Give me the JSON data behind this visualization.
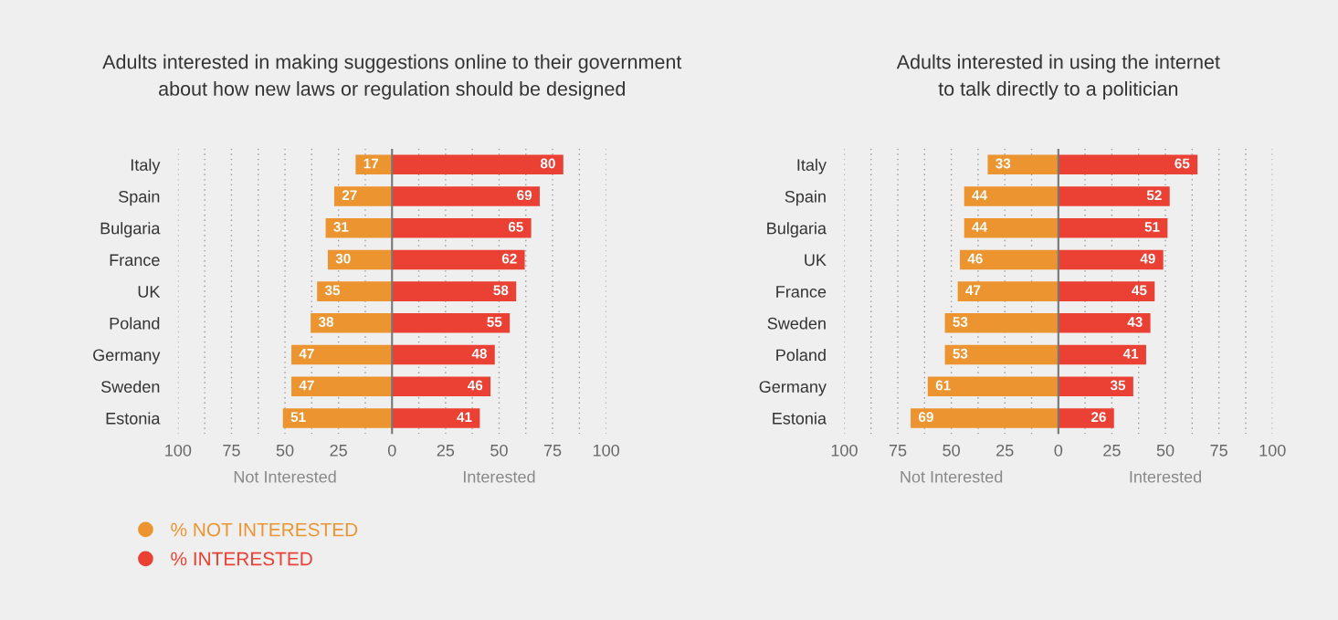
{
  "chart_data": [
    {
      "type": "bar",
      "orientation": "horizontal",
      "stacked": true,
      "title": "Adults interested in making suggestions online to their government\nabout how new laws or regulation should be designed",
      "categories": [
        "Italy",
        "Spain",
        "Bulgaria",
        "France",
        "UK",
        "Poland",
        "Germany",
        "Sweden",
        "Estonia"
      ],
      "series": [
        {
          "name": "% NOT INTERESTED",
          "color": "#ec9430",
          "values": [
            17,
            27,
            31,
            30,
            35,
            38,
            47,
            47,
            51
          ],
          "base": [
            -17,
            -27,
            -31,
            -30,
            -35,
            -38,
            -47,
            -47,
            -51
          ]
        },
        {
          "name": "% INTERESTED",
          "color": "#eb4034",
          "values": [
            80,
            69,
            65,
            62,
            58,
            55,
            48,
            46,
            41
          ]
        }
      ],
      "data_labels": true,
      "xlim": [
        -100,
        100
      ],
      "xticks": [
        {
          "value": -100,
          "label": "100"
        },
        {
          "value": -87.5,
          "label": null
        },
        {
          "value": -75,
          "label": "75"
        },
        {
          "value": -62.5,
          "label": null
        },
        {
          "value": -50,
          "label": "50"
        },
        {
          "value": -37.5,
          "label": null
        },
        {
          "value": -25,
          "label": "25"
        },
        {
          "value": -12.5,
          "label": null
        },
        0,
        {
          "value": 12.5,
          "label": null
        },
        25,
        {
          "value": 37.5,
          "label": null
        },
        50,
        {
          "value": 62.5,
          "label": null
        },
        75,
        {
          "value": 87.5,
          "label": null
        },
        100
      ],
      "grid": "x",
      "ref_lines": [
        {
          "axis": "x",
          "value": 0,
          "color": "#777777"
        }
      ],
      "annotations": [
        "Not Interested",
        "Interested"
      ],
      "legend": "bottom left"
    },
    {
      "type": "bar",
      "orientation": "horizontal",
      "stacked": true,
      "title": "Adults interested in using the internet\nto talk directly to a politician",
      "categories": [
        "Italy",
        "Spain",
        "Bulgaria",
        "UK",
        "France",
        "Sweden",
        "Poland",
        "Germany",
        "Estonia"
      ],
      "series": [
        {
          "color": "#ec9430",
          "values": [
            33,
            44,
            44,
            46,
            47,
            53,
            53,
            61,
            69
          ],
          "base": [
            -33,
            -44,
            -44,
            -46,
            -47,
            -53,
            -53,
            -61,
            -69
          ]
        },
        {
          "color": "#eb4034",
          "values": [
            65,
            52,
            51,
            49,
            45,
            43,
            41,
            35,
            26
          ]
        }
      ],
      "data_labels": true,
      "xlim": [
        -100,
        100
      ],
      "xticks": [
        {
          "value": -100,
          "label": "100"
        },
        {
          "value": -87.5,
          "label": null
        },
        {
          "value": -75,
          "label": "75"
        },
        {
          "value": -62.5,
          "label": null
        },
        {
          "value": -50,
          "label": "50"
        },
        {
          "value": -37.5,
          "label": null
        },
        {
          "value": -25,
          "label": "25"
        },
        {
          "value": -12.5,
          "label": null
        },
        0,
        {
          "value": 12.5,
          "label": null
        },
        25,
        {
          "value": 37.5,
          "label": null
        },
        50,
        {
          "value": 62.5,
          "label": null
        },
        75,
        {
          "value": 87.5,
          "label": null
        },
        100
      ],
      "grid": "x",
      "ref_lines": [
        {
          "axis": "x",
          "value": 0,
          "color": "#777777"
        }
      ],
      "annotations": [
        "Not Interested",
        "Interested"
      ]
    }
  ]
}
